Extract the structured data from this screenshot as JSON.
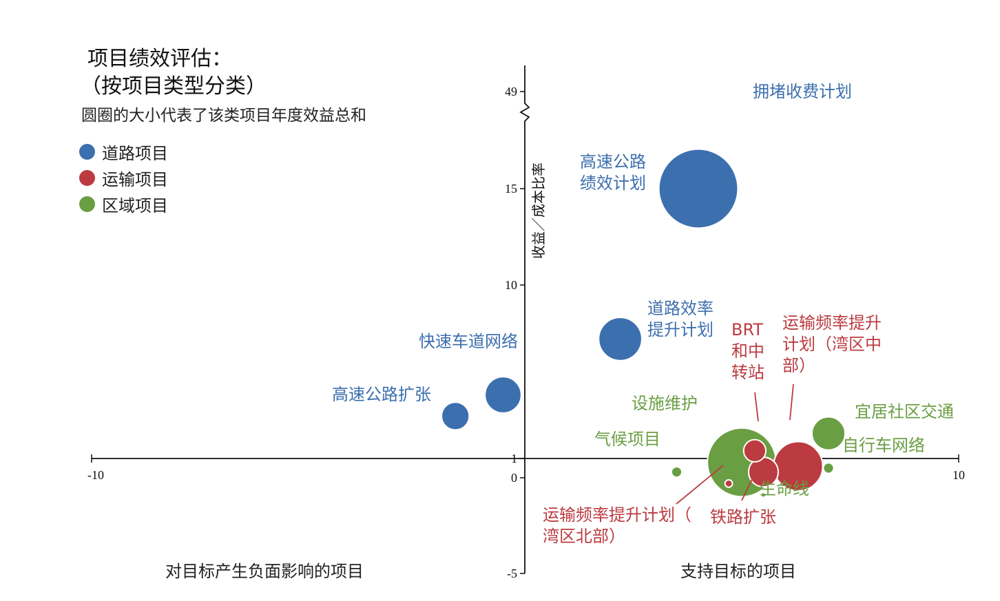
{
  "title_line1": "项目绩效评估：",
  "title_line2": "（按项目类型分类）",
  "subtitle": "圆圈的大小代表了该类项目年度效益总和",
  "legend": [
    {
      "label": "道路项目",
      "color": "#3c6fae"
    },
    {
      "label": "运输项目",
      "color": "#bb3b40"
    },
    {
      "label": "区域项目",
      "color": "#6a9e43"
    }
  ],
  "bottom_left_label": "对目标产生负面影响的项目",
  "bottom_right_label": "支持目标的项目",
  "chart_data": {
    "type": "scatter",
    "subtype": "bubble",
    "ylabel": "收益／成本比率",
    "xlim": [
      -10,
      10
    ],
    "ylim": [
      -5,
      49
    ],
    "y_axis_break": "between 18 and 49",
    "x_ticks": [
      "-10",
      "10"
    ],
    "y_ticks": [
      "49",
      "15",
      "10",
      "1",
      "0",
      "-5"
    ],
    "grid": false,
    "legend_position": "top-left",
    "series": [
      {
        "name": "道路项目",
        "color": "#3c6fae",
        "points": [
          {
            "label": "拥堵收费计划",
            "x": 4.9,
            "y": 49,
            "size": 1.5
          },
          {
            "label": "高速公路绩效计划",
            "x": 4.0,
            "y": 15.0,
            "size": 57
          },
          {
            "label": "道路效率提升计划",
            "x": 2.2,
            "y": 7.2,
            "size": 17
          },
          {
            "label": "快速车道网络",
            "x": -0.5,
            "y": 4.3,
            "size": 12
          },
          {
            "label": "高速公路扩张",
            "x": -1.6,
            "y": 3.2,
            "size": 7
          }
        ]
      },
      {
        "name": "运输项目",
        "color": "#bb3b40",
        "points": [
          {
            "label": "BRT和中转站",
            "x": 5.3,
            "y": 1.4,
            "size": 4.5
          },
          {
            "label": "运输频率提升计划（湾区中部）",
            "x": 6.3,
            "y": 0.6,
            "size": 22
          },
          {
            "label": "铁路扩张",
            "x": 5.5,
            "y": 0.3,
            "size": 8
          },
          {
            "label": "运输频率提升计划（湾区北部）",
            "x": 4.7,
            "y": -0.3,
            "size": 0.5
          }
        ]
      },
      {
        "name": "区域项目",
        "color": "#6a9e43",
        "points": [
          {
            "label": "设施维护",
            "x": 5.0,
            "y": 0.8,
            "size": 43
          },
          {
            "label": "宜居社区交通",
            "x": 7.0,
            "y": 2.3,
            "size": 10
          },
          {
            "label": "自行车网络",
            "x": 7.0,
            "y": 0.5,
            "size": 1
          },
          {
            "label": "气候项目",
            "x": 3.5,
            "y": 0.3,
            "size": 1
          },
          {
            "label": "生命线",
            "x": 5.5,
            "y": -0.9,
            "size": 0.05
          }
        ]
      }
    ]
  }
}
